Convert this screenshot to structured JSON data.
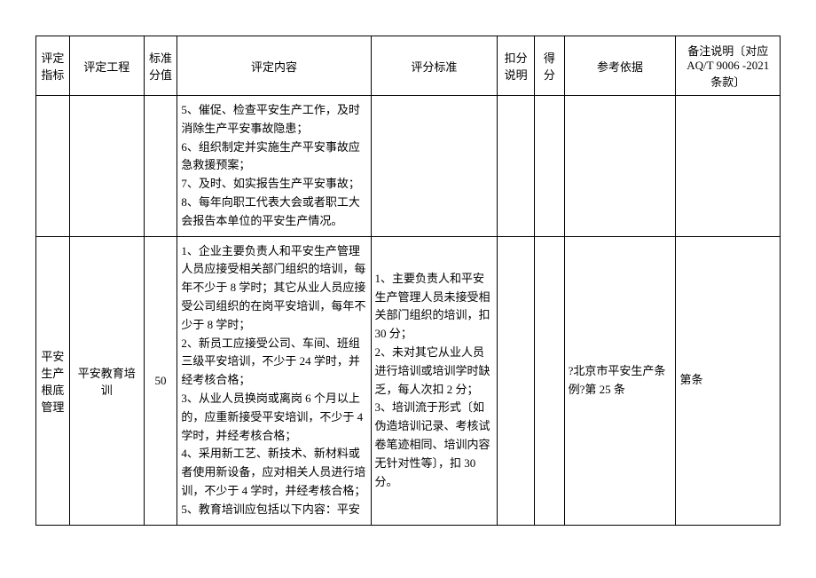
{
  "header": {
    "indicator": "评定指标",
    "project": "评定工程",
    "std_score": "标准分值",
    "content": "评定内容",
    "criteria": "评分标准",
    "deduct": "扣分说明",
    "gain": "得分",
    "reference": "参考依据",
    "remark": "备注说明〔对应 AQ/T 9006 -2021 条款〕"
  },
  "rows": [
    {
      "indicator": "",
      "project": "",
      "std_score": "",
      "content": "5、催促、检查平安生产工作，及时消除生产平安事故隐患；\n6、组织制定并实施生产平安事故应急救援预案；\n7、及时、如实报告生产平安事故；\n8、每年向职工代表大会或者职工大会报告本单位的平安生产情况。",
      "criteria": "",
      "deduct": "",
      "gain": "",
      "reference": "",
      "remark": ""
    },
    {
      "indicator": "平安生产根底管理",
      "project": "平安教育培训",
      "std_score": "50",
      "content": "1、企业主要负责人和平安生产管理人员应接受相关部门组织的培训，每年不少于 8 学时；其它从业人员应接受公司组织的在岗平安培训，每年不少于 8 学时；\n2、新员工应接受公司、车间、班组三级平安培训，不少于 24 学时，并经考核合格；\n3、从业人员换岗或离岗 6 个月以上的，应重新接受平安培训，不少于 4 学时，并经考核合格；\n4、采用新工艺、新技术、新材料或者使用新设备，应对相关人员进行培训，不少于 4 学时，并经考核合格；\n5、教育培训应包括以下内容：平安",
      "criteria": "1、主要负责人和平安生产管理人员未接受相关部门组织的培训，扣 30 分；\n2、未对其它从业人员进行培训或培训学时缺乏，每人次扣 2 分；\n3、培训流于形式〔如伪造培训记录、考核试卷笔迹相同、培训内容无针对性等〕，扣 30 分。",
      "deduct": "",
      "gain": "",
      "reference": "?北京市平安生产条例?第 25 条",
      "remark": "第条"
    }
  ]
}
